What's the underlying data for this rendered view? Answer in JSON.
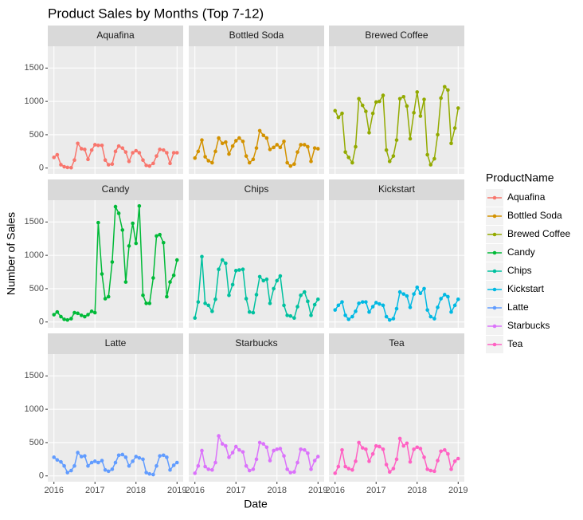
{
  "chart_data": {
    "type": "line",
    "title": "Product Sales by Months (Top 7-12)",
    "x_label": "Date",
    "y_label": "Number of Sales",
    "legend_title": "ProductName",
    "legend_position": "right",
    "grid": true,
    "x": [
      2016,
      2016.08,
      2016.17,
      2016.25,
      2016.33,
      2016.42,
      2016.5,
      2016.58,
      2016.67,
      2016.75,
      2016.83,
      2016.92,
      2017,
      2017.08,
      2017.17,
      2017.25,
      2017.33,
      2017.42,
      2017.5,
      2017.58,
      2017.67,
      2017.75,
      2017.83,
      2017.92,
      2018,
      2018.08,
      2018.17,
      2018.25,
      2018.33,
      2018.42,
      2018.5,
      2018.58,
      2018.67,
      2018.75,
      2018.83,
      2018.92,
      2019
    ],
    "xlim": [
      2015.85,
      2019.15
    ],
    "xticks": [
      2016,
      2017,
      2018,
      2019
    ],
    "ylim": [
      -87,
      1827
    ],
    "yticks": [
      0,
      500,
      1000,
      1500
    ],
    "series": [
      {
        "name": "Aquafina",
        "color": "#F8766D",
        "values": [
          160,
          200,
          50,
          20,
          10,
          5,
          120,
          370,
          290,
          280,
          130,
          270,
          350,
          340,
          340,
          120,
          50,
          60,
          250,
          330,
          300,
          240,
          100,
          230,
          260,
          230,
          120,
          40,
          30,
          70,
          180,
          280,
          270,
          230,
          70,
          230,
          230
        ]
      },
      {
        "name": "Bottled Soda",
        "color": "#D39200",
        "values": [
          150,
          250,
          420,
          170,
          110,
          80,
          250,
          450,
          370,
          390,
          210,
          330,
          410,
          450,
          400,
          180,
          80,
          130,
          300,
          560,
          490,
          450,
          280,
          310,
          350,
          310,
          400,
          80,
          30,
          60,
          240,
          350,
          350,
          320,
          100,
          300,
          290
        ]
      },
      {
        "name": "Brewed Coffee",
        "color": "#93AA00",
        "values": [
          860,
          760,
          820,
          240,
          160,
          80,
          320,
          1040,
          940,
          850,
          530,
          820,
          990,
          1000,
          1090,
          270,
          100,
          180,
          420,
          1040,
          1070,
          930,
          440,
          830,
          1140,
          780,
          1030,
          200,
          50,
          140,
          500,
          1050,
          1220,
          1170,
          370,
          600,
          900
        ]
      },
      {
        "name": "Candy",
        "color": "#00BA38",
        "values": [
          110,
          150,
          80,
          40,
          30,
          50,
          140,
          130,
          100,
          80,
          110,
          160,
          140,
          1490,
          720,
          350,
          380,
          900,
          1730,
          1630,
          1380,
          600,
          1140,
          1480,
          1180,
          1740,
          400,
          280,
          280,
          660,
          1290,
          1310,
          1190,
          380,
          600,
          700,
          930
        ]
      },
      {
        "name": "Chips",
        "color": "#00C19F",
        "values": [
          60,
          300,
          980,
          280,
          250,
          160,
          340,
          790,
          930,
          880,
          400,
          560,
          770,
          780,
          790,
          350,
          150,
          140,
          410,
          680,
          620,
          640,
          280,
          500,
          620,
          690,
          250,
          100,
          90,
          60,
          230,
          400,
          450,
          310,
          100,
          260,
          340
        ]
      },
      {
        "name": "Kickstart",
        "color": "#00B9E3",
        "values": [
          180,
          250,
          300,
          100,
          40,
          80,
          160,
          280,
          300,
          300,
          150,
          230,
          290,
          270,
          250,
          80,
          30,
          50,
          200,
          450,
          420,
          390,
          220,
          420,
          520,
          430,
          500,
          180,
          80,
          50,
          220,
          350,
          410,
          380,
          150,
          250,
          340
        ]
      },
      {
        "name": "Latte",
        "color": "#619CFF",
        "values": [
          280,
          240,
          210,
          150,
          50,
          80,
          150,
          350,
          290,
          300,
          150,
          200,
          220,
          200,
          230,
          90,
          70,
          100,
          200,
          310,
          320,
          280,
          150,
          220,
          290,
          270,
          250,
          50,
          30,
          20,
          150,
          300,
          310,
          280,
          90,
          160,
          200
        ]
      },
      {
        "name": "Starbucks",
        "color": "#DB72FB",
        "values": [
          40,
          150,
          380,
          140,
          100,
          90,
          200,
          600,
          480,
          450,
          280,
          350,
          440,
          390,
          360,
          150,
          80,
          100,
          250,
          500,
          480,
          430,
          230,
          380,
          400,
          410,
          300,
          100,
          50,
          60,
          200,
          400,
          390,
          340,
          100,
          230,
          290
        ]
      },
      {
        "name": "Tea",
        "color": "#FF61C3",
        "values": [
          40,
          140,
          390,
          140,
          110,
          90,
          220,
          500,
          420,
          400,
          220,
          330,
          450,
          440,
          400,
          170,
          60,
          110,
          250,
          560,
          450,
          490,
          210,
          400,
          430,
          410,
          280,
          100,
          80,
          70,
          230,
          370,
          390,
          330,
          100,
          220,
          260
        ]
      }
    ]
  }
}
